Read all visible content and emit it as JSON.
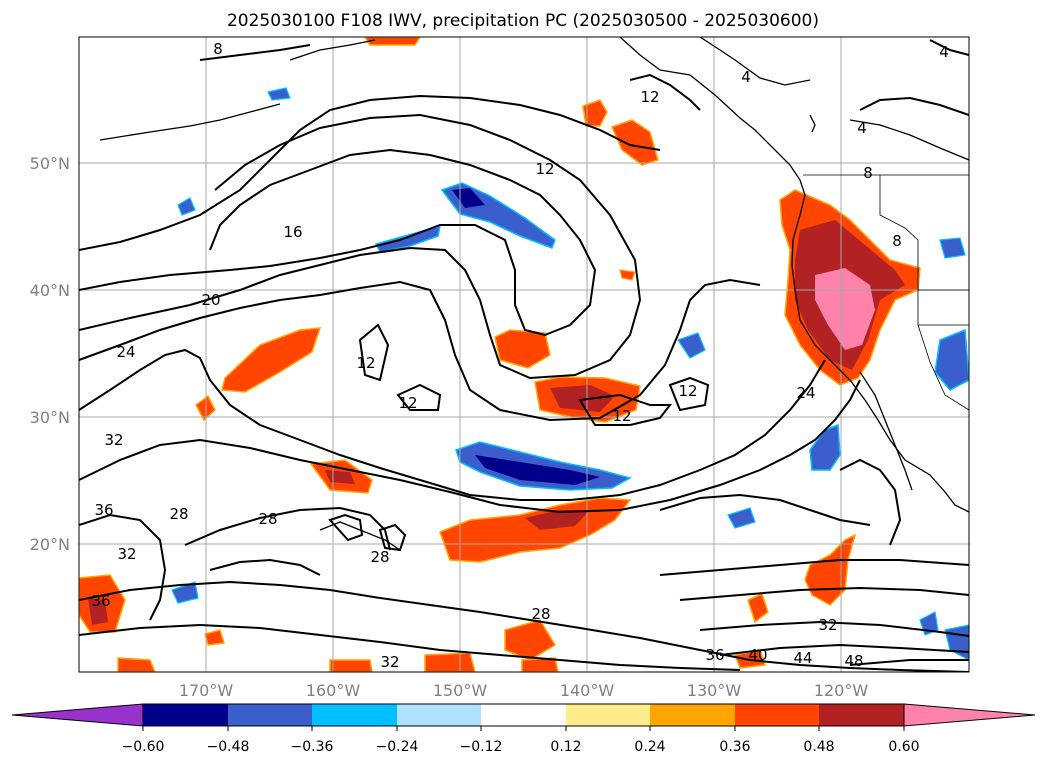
{
  "title": "2025030100 F108 IWV, precipitation PC (2025030500 - 2025030600)",
  "map": {
    "lat_labels": [
      "50°N",
      "40°N",
      "30°N",
      "20°N"
    ],
    "lon_labels": [
      "170°W",
      "160°W",
      "150°W",
      "140°W",
      "130°W",
      "120°W"
    ],
    "contour_labels": [
      "8",
      "4",
      "4",
      "12",
      "4",
      "12",
      "8",
      "16",
      "8",
      "20",
      "24",
      "12",
      "12",
      "12",
      "12",
      "24",
      "32",
      "36",
      "28",
      "28",
      "32",
      "28",
      "36",
      "28",
      "32",
      "36",
      "40",
      "44",
      "48",
      "32"
    ]
  },
  "colorbar": {
    "ticks": [
      "−0.60",
      "−0.48",
      "−0.36",
      "−0.24",
      "−0.12",
      "0.12",
      "0.24",
      "0.36",
      "0.48",
      "0.60"
    ],
    "colors": [
      "#9932cc",
      "#00008b",
      "#3a5fcd",
      "#00bfff",
      "#b0e2ff",
      "#ffffff",
      "#ffec8b",
      "#ffa500",
      "#ff4500",
      "#b22222",
      "#ff82ab"
    ]
  }
}
